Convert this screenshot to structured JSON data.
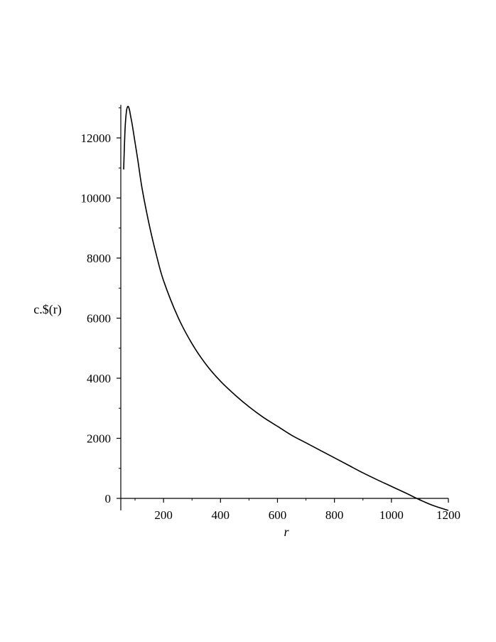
{
  "chart_data": {
    "type": "line",
    "title": "",
    "xlabel": "r",
    "ylabel": "c.$(r)",
    "xlim": [
      50,
      1200
    ],
    "ylim": [
      -400,
      13100
    ],
    "x_ticks": [
      200,
      400,
      600,
      800,
      1000,
      1200
    ],
    "x_tick_labels": [
      "200",
      "400",
      "600",
      "800",
      "1000",
      "1200"
    ],
    "y_ticks": [
      0,
      2000,
      4000,
      6000,
      8000,
      10000,
      12000
    ],
    "y_tick_labels": [
      "0",
      "2000",
      "4000",
      "6000",
      "8000",
      "10000",
      "12000"
    ],
    "grid": false,
    "legend": "none",
    "line_color": "#000000",
    "series": [
      {
        "x": [
          60,
          65,
          70,
          75,
          80,
          85,
          90,
          100,
          110,
          125,
          150,
          175,
          200,
          250,
          300,
          350,
          400,
          450,
          500,
          550,
          600,
          650,
          700,
          750,
          800,
          850,
          900,
          950,
          1000,
          1050,
          1100,
          1150,
          1200
        ],
        "y": [
          10950,
          12300,
          12900,
          13050,
          12950,
          12700,
          12450,
          11850,
          11250,
          10300,
          9100,
          8100,
          7250,
          6050,
          5150,
          4450,
          3900,
          3450,
          3050,
          2700,
          2400,
          2100,
          1850,
          1600,
          1350,
          1100,
          850,
          620,
          400,
          180,
          -50,
          -250,
          -400
        ]
      }
    ]
  }
}
